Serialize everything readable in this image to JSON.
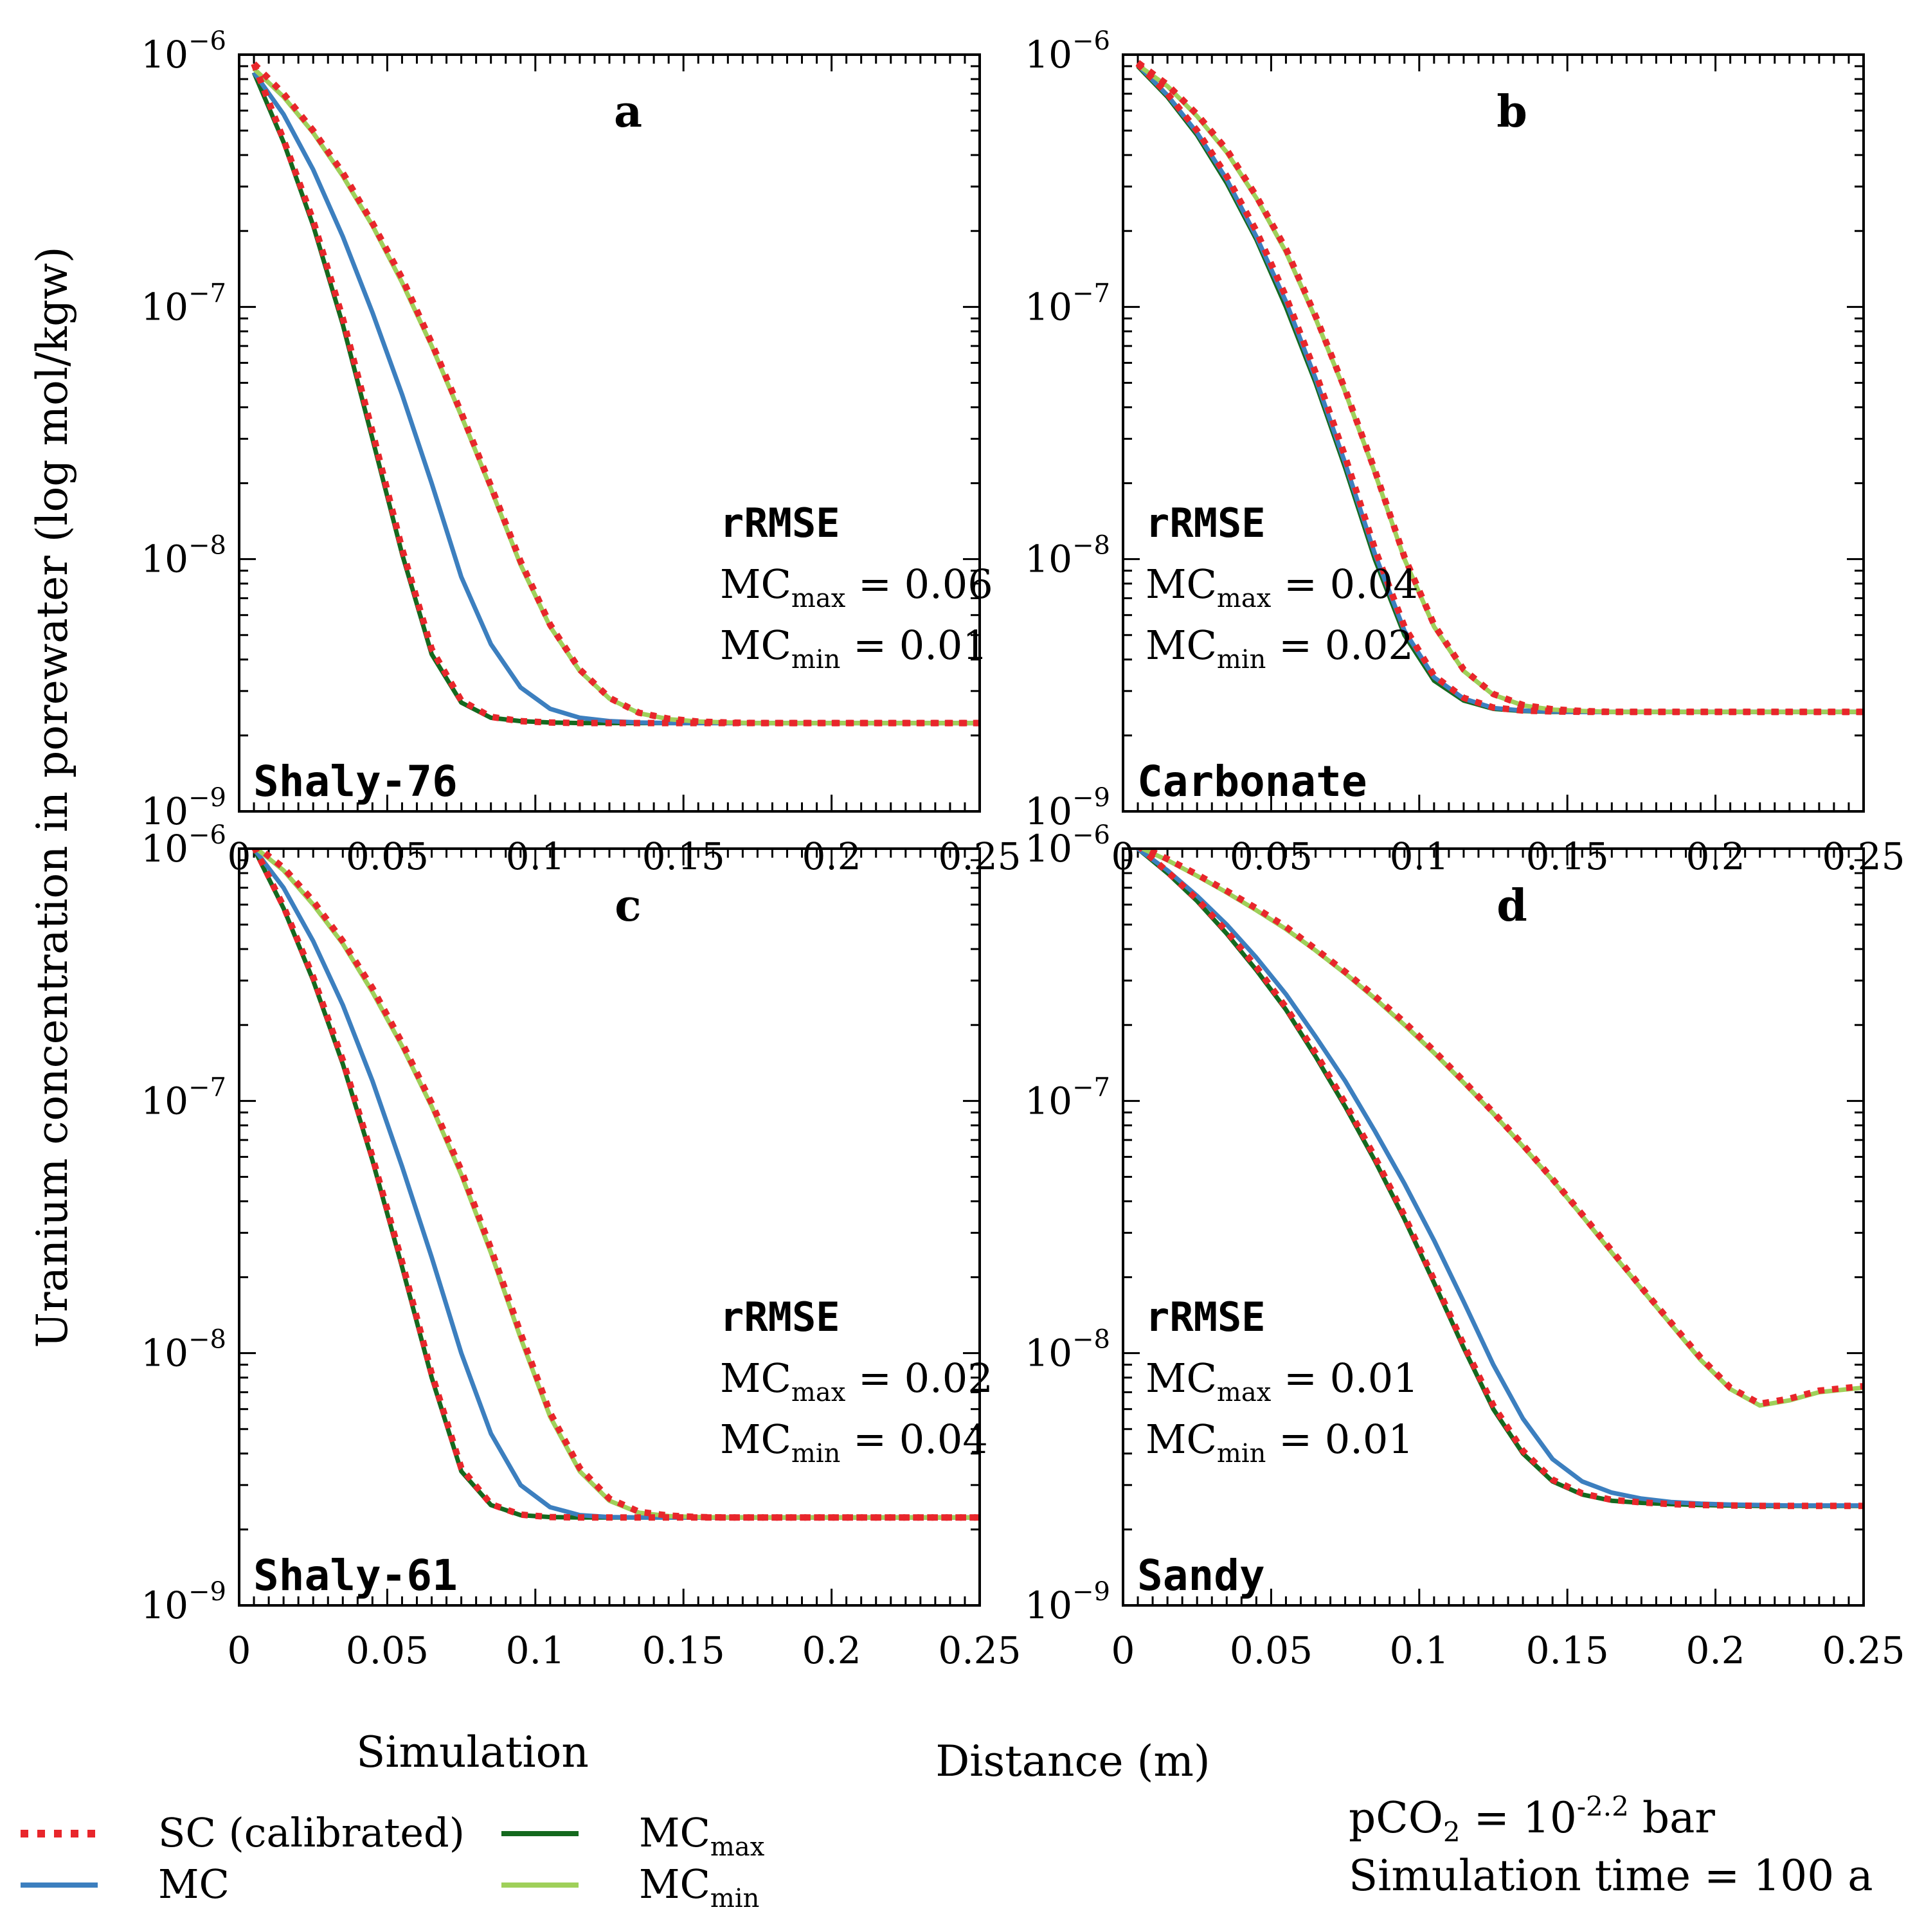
{
  "figure": {
    "y_axis_title": "Uranium concentration in porewater (log mol/kgw)",
    "x_axis_title": "Distance (m)",
    "simulation_label": "Simulation",
    "legend": [
      {
        "key": "SC",
        "label": "SC (calibrated)",
        "color": "#e8262b",
        "style": "dotted"
      },
      {
        "key": "MC",
        "label": "MC",
        "color": "#3c7fbf",
        "style": "solid"
      },
      {
        "key": "MCmax",
        "label": "MC",
        "sub": "max",
        "color": "#14691e",
        "style": "solid"
      },
      {
        "key": "MCmin",
        "label": "MC",
        "sub": "min",
        "color": "#9fd05a",
        "style": "solid"
      }
    ],
    "notes": {
      "pco2_prefix": "pCO",
      "pco2_sub": "2",
      "pco2_mid": " = 10",
      "pco2_exp": "-2.2",
      "pco2_unit": " bar",
      "time_text": "Simulation time = 100 a"
    }
  },
  "chart_data": [
    {
      "type": "line",
      "letter": "a",
      "name": "Shaly-76",
      "xlim": [
        0,
        0.25
      ],
      "ylim_log10": [
        -9,
        -6
      ],
      "xticks": [
        0,
        0.05,
        0.1,
        0.15,
        0.2,
        0.25
      ],
      "xtick_labels": [
        "0",
        "0.05",
        "0.1",
        "0.15",
        "0.2",
        "0.25"
      ],
      "ytick_exponents": [
        -9,
        -8,
        -7,
        -6
      ],
      "rrmse": {
        "title": "rRMSE",
        "mc_max": "MC",
        "mc_max_sub": "max",
        "mc_max_value": " = 0.06",
        "mc_min": "MC",
        "mc_min_sub": "min",
        "mc_min_value": " = 0.01"
      },
      "x": [
        0.005,
        0.015,
        0.025,
        0.035,
        0.045,
        0.055,
        0.065,
        0.075,
        0.085,
        0.095,
        0.105,
        0.115,
        0.125,
        0.135,
        0.145,
        0.155,
        0.165,
        0.175,
        0.185,
        0.195,
        0.205,
        0.215,
        0.225,
        0.235,
        0.245,
        0.25
      ],
      "series": [
        {
          "key": "MCmax",
          "values": [
            8.5e-07,
            4.5e-07,
            2.1e-07,
            8.5e-08,
            3e-08,
            1.05e-08,
            4.2e-09,
            2.7e-09,
            2.35e-09,
            2.28e-09,
            2.25e-09,
            2.24e-09,
            2.24e-09,
            2.24e-09,
            2.24e-09,
            2.24e-09,
            2.24e-09,
            2.24e-09,
            2.24e-09,
            2.24e-09,
            2.24e-09,
            2.24e-09,
            2.24e-09,
            2.24e-09,
            2.24e-09,
            2.24e-09
          ]
        },
        {
          "key": "MC",
          "values": [
            8.5e-07,
            5.8e-07,
            3.5e-07,
            1.9e-07,
            9.5e-08,
            4.5e-08,
            2e-08,
            8.5e-09,
            4.6e-09,
            3.1e-09,
            2.55e-09,
            2.35e-09,
            2.28e-09,
            2.25e-09,
            2.24e-09,
            2.24e-09,
            2.24e-09,
            2.24e-09,
            2.24e-09,
            2.24e-09,
            2.24e-09,
            2.24e-09,
            2.24e-09,
            2.24e-09,
            2.24e-09,
            2.24e-09
          ]
        },
        {
          "key": "MCmin",
          "values": [
            8.8e-07,
            6.8e-07,
            4.9e-07,
            3.3e-07,
            2.1e-07,
            1.25e-07,
            7e-08,
            3.7e-08,
            1.9e-08,
            9.5e-09,
            5.4e-09,
            3.6e-09,
            2.8e-09,
            2.45e-09,
            2.32e-09,
            2.27e-09,
            2.25e-09,
            2.24e-09,
            2.24e-09,
            2.24e-09,
            2.24e-09,
            2.24e-09,
            2.24e-09,
            2.24e-09,
            2.24e-09,
            2.24e-09
          ]
        },
        {
          "key": "SC",
          "values": [
            9.2e-07,
            4.6e-07,
            2.2e-07,
            9e-08,
            3.2e-08,
            1.1e-08,
            4.4e-09,
            2.75e-09,
            2.37e-09,
            2.28e-09,
            2.25e-09,
            2.24e-09,
            2.24e-09,
            2.24e-09,
            2.24e-09,
            2.24e-09,
            2.24e-09,
            2.24e-09,
            2.24e-09,
            2.24e-09,
            2.24e-09,
            2.24e-09,
            2.24e-09,
            2.24e-09,
            2.24e-09,
            2.24e-09
          ]
        },
        {
          "key": "SC",
          "values": [
            9.2e-07,
            7e-07,
            5e-07,
            3.4e-07,
            2.15e-07,
            1.3e-07,
            7.2e-08,
            3.8e-08,
            1.95e-08,
            9.8e-09,
            5.5e-09,
            3.65e-09,
            2.82e-09,
            2.46e-09,
            2.33e-09,
            2.27e-09,
            2.25e-09,
            2.24e-09,
            2.24e-09,
            2.24e-09,
            2.24e-09,
            2.24e-09,
            2.24e-09,
            2.24e-09,
            2.24e-09,
            2.24e-09
          ]
        }
      ]
    },
    {
      "type": "line",
      "letter": "b",
      "name": "Carbonate",
      "xlim": [
        0,
        0.25
      ],
      "ylim_log10": [
        -9,
        -6
      ],
      "xticks": [
        0,
        0.05,
        0.1,
        0.15,
        0.2,
        0.25
      ],
      "xtick_labels": [
        "0",
        "0.05",
        "0.1",
        "0.15",
        "0.2",
        "0.25"
      ],
      "ytick_exponents": [
        -9,
        -8,
        -7,
        -6
      ],
      "rrmse": {
        "title": "rRMSE",
        "mc_max": "MC",
        "mc_max_sub": "max",
        "mc_max_value": " = 0.04",
        "mc_min": "MC",
        "mc_min_sub": "min",
        "mc_min_value": " = 0.02"
      },
      "x": [
        0.005,
        0.015,
        0.025,
        0.035,
        0.045,
        0.055,
        0.065,
        0.075,
        0.085,
        0.095,
        0.105,
        0.115,
        0.125,
        0.135,
        0.145,
        0.155,
        0.165,
        0.175,
        0.185,
        0.195,
        0.205,
        0.215,
        0.225,
        0.235,
        0.245,
        0.25
      ],
      "series": [
        {
          "key": "MCmax",
          "values": [
            9e-07,
            6.8e-07,
            4.8e-07,
            3.1e-07,
            1.85e-07,
            1e-07,
            5e-08,
            2.3e-08,
            1e-08,
            5e-09,
            3.3e-09,
            2.75e-09,
            2.55e-09,
            2.5e-09,
            2.48e-09,
            2.48e-09,
            2.48e-09,
            2.48e-09,
            2.48e-09,
            2.48e-09,
            2.48e-09,
            2.48e-09,
            2.48e-09,
            2.48e-09,
            2.48e-09,
            2.48e-09
          ]
        },
        {
          "key": "MC",
          "values": [
            9.1e-07,
            6.9e-07,
            4.9e-07,
            3.2e-07,
            1.9e-07,
            1.05e-07,
            5.2e-08,
            2.4e-08,
            1.05e-08,
            5.2e-09,
            3.4e-09,
            2.8e-09,
            2.57e-09,
            2.51e-09,
            2.49e-09,
            2.48e-09,
            2.48e-09,
            2.48e-09,
            2.48e-09,
            2.48e-09,
            2.48e-09,
            2.48e-09,
            2.48e-09,
            2.48e-09,
            2.48e-09,
            2.48e-09
          ]
        },
        {
          "key": "MCmin",
          "values": [
            9.1e-07,
            7.5e-07,
            5.7e-07,
            4.1e-07,
            2.7e-07,
            1.65e-07,
            9e-08,
            4.6e-08,
            2.2e-08,
            1e-08,
            5.4e-09,
            3.6e-09,
            2.9e-09,
            2.63e-09,
            2.53e-09,
            2.5e-09,
            2.48e-09,
            2.48e-09,
            2.48e-09,
            2.48e-09,
            2.48e-09,
            2.48e-09,
            2.48e-09,
            2.48e-09,
            2.48e-09,
            2.48e-09
          ]
        },
        {
          "key": "SC",
          "values": [
            9.2e-07,
            7e-07,
            5e-07,
            3.3e-07,
            2e-07,
            1.1e-07,
            5.5e-08,
            2.55e-08,
            1.1e-08,
            5.4e-09,
            3.45e-09,
            2.82e-09,
            2.58e-09,
            2.51e-09,
            2.49e-09,
            2.48e-09,
            2.48e-09,
            2.48e-09,
            2.48e-09,
            2.48e-09,
            2.48e-09,
            2.48e-09,
            2.48e-09,
            2.48e-09,
            2.48e-09,
            2.48e-09
          ]
        },
        {
          "key": "SC",
          "values": [
            9.3e-07,
            7.6e-07,
            5.8e-07,
            4.2e-07,
            2.75e-07,
            1.7e-07,
            9.2e-08,
            4.7e-08,
            2.25e-08,
            1.02e-08,
            5.5e-09,
            3.65e-09,
            2.92e-09,
            2.64e-09,
            2.54e-09,
            2.5e-09,
            2.48e-09,
            2.48e-09,
            2.48e-09,
            2.48e-09,
            2.48e-09,
            2.48e-09,
            2.48e-09,
            2.48e-09,
            2.48e-09,
            2.48e-09
          ]
        }
      ]
    },
    {
      "type": "line",
      "letter": "c",
      "name": "Shaly-61",
      "xlim": [
        0,
        0.25
      ],
      "ylim_log10": [
        -9,
        -6
      ],
      "xticks": [
        0,
        0.05,
        0.1,
        0.15,
        0.2,
        0.25
      ],
      "xtick_labels": [
        "0",
        "0.05",
        "0.1",
        "0.15",
        "0.2",
        "0.25"
      ],
      "ytick_exponents": [
        -9,
        -8,
        -7,
        -6
      ],
      "rrmse": {
        "title": "rRMSE",
        "mc_max": "MC",
        "mc_max_sub": "max",
        "mc_max_value": " = 0.02",
        "mc_min": "MC",
        "mc_min_sub": "min",
        "mc_min_value": " = 0.04"
      },
      "x": [
        0.005,
        0.015,
        0.025,
        0.035,
        0.045,
        0.055,
        0.065,
        0.075,
        0.085,
        0.095,
        0.105,
        0.115,
        0.125,
        0.135,
        0.145,
        0.155,
        0.165,
        0.175,
        0.185,
        0.195,
        0.205,
        0.215,
        0.225,
        0.235,
        0.245,
        0.25
      ],
      "series": [
        {
          "key": "MCmax",
          "values": [
            1e-06,
            5.8e-07,
            3e-07,
            1.4e-07,
            5.8e-08,
            2.2e-08,
            8e-09,
            3.4e-09,
            2.5e-09,
            2.28e-09,
            2.24e-09,
            2.23e-09,
            2.23e-09,
            2.23e-09,
            2.23e-09,
            2.23e-09,
            2.23e-09,
            2.23e-09,
            2.23e-09,
            2.23e-09,
            2.23e-09,
            2.23e-09,
            2.23e-09,
            2.23e-09,
            2.23e-09,
            2.23e-09
          ]
        },
        {
          "key": "MC",
          "values": [
            1e-06,
            7e-07,
            4.3e-07,
            2.4e-07,
            1.2e-07,
            5.5e-08,
            2.4e-08,
            1e-08,
            4.8e-09,
            3e-09,
            2.45e-09,
            2.28e-09,
            2.24e-09,
            2.23e-09,
            2.23e-09,
            2.23e-09,
            2.23e-09,
            2.23e-09,
            2.23e-09,
            2.23e-09,
            2.23e-09,
            2.23e-09,
            2.23e-09,
            2.23e-09,
            2.23e-09,
            2.23e-09
          ]
        },
        {
          "key": "MCmin",
          "values": [
            1.02e-06,
            8.2e-07,
            6e-07,
            4.2e-07,
            2.7e-07,
            1.65e-07,
            9.5e-08,
            5.1e-08,
            2.5e-08,
            1.15e-08,
            5.6e-09,
            3.4e-09,
            2.6e-09,
            2.33e-09,
            2.26e-09,
            2.24e-09,
            2.23e-09,
            2.23e-09,
            2.23e-09,
            2.23e-09,
            2.23e-09,
            2.23e-09,
            2.23e-09,
            2.23e-09,
            2.23e-09,
            2.23e-09
          ]
        },
        {
          "key": "SC",
          "values": [
            1.02e-06,
            5.9e-07,
            3.1e-07,
            1.45e-07,
            6e-08,
            2.3e-08,
            8.3e-09,
            3.5e-09,
            2.52e-09,
            2.29e-09,
            2.24e-09,
            2.23e-09,
            2.23e-09,
            2.23e-09,
            2.23e-09,
            2.23e-09,
            2.23e-09,
            2.23e-09,
            2.23e-09,
            2.23e-09,
            2.23e-09,
            2.23e-09,
            2.23e-09,
            2.23e-09,
            2.23e-09,
            2.23e-09
          ]
        },
        {
          "key": "SC",
          "values": [
            1.04e-06,
            8.4e-07,
            6.2e-07,
            4.3e-07,
            2.8e-07,
            1.7e-07,
            9.8e-08,
            5.3e-08,
            2.6e-08,
            1.2e-08,
            5.8e-09,
            3.5e-09,
            2.65e-09,
            2.35e-09,
            2.27e-09,
            2.24e-09,
            2.23e-09,
            2.23e-09,
            2.23e-09,
            2.23e-09,
            2.23e-09,
            2.23e-09,
            2.23e-09,
            2.23e-09,
            2.23e-09,
            2.23e-09
          ]
        }
      ]
    },
    {
      "type": "line",
      "letter": "d",
      "name": "Sandy",
      "xlim": [
        0,
        0.25
      ],
      "ylim_log10": [
        -9,
        -6
      ],
      "xticks": [
        0,
        0.05,
        0.1,
        0.15,
        0.2,
        0.25
      ],
      "xtick_labels": [
        "0",
        "0.05",
        "0.1",
        "0.15",
        "0.2",
        "0.25"
      ],
      "ytick_exponents": [
        -9,
        -8,
        -7,
        -6
      ],
      "rrmse": {
        "title": "rRMSE",
        "mc_max": "MC",
        "mc_max_sub": "max",
        "mc_max_value": " = 0.01",
        "mc_min": "MC",
        "mc_min_sub": "min",
        "mc_min_value": " = 0.01"
      },
      "x": [
        0.005,
        0.015,
        0.025,
        0.035,
        0.045,
        0.055,
        0.065,
        0.075,
        0.085,
        0.095,
        0.105,
        0.115,
        0.125,
        0.135,
        0.145,
        0.155,
        0.165,
        0.175,
        0.185,
        0.195,
        0.205,
        0.215,
        0.225,
        0.235,
        0.245,
        0.25
      ],
      "series": [
        {
          "key": "MCmax",
          "values": [
            1e-06,
            8e-07,
            6.2e-07,
            4.6e-07,
            3.3e-07,
            2.3e-07,
            1.5e-07,
            9.5e-08,
            5.8e-08,
            3.4e-08,
            1.9e-08,
            1.05e-08,
            6e-09,
            4e-09,
            3.1e-09,
            2.75e-09,
            2.6e-09,
            2.55e-09,
            2.52e-09,
            2.5e-09,
            2.49e-09,
            2.48e-09,
            2.48e-09,
            2.48e-09,
            2.48e-09,
            2.48e-09
          ]
        },
        {
          "key": "MC",
          "values": [
            1e-06,
            8.2e-07,
            6.5e-07,
            5e-07,
            3.7e-07,
            2.65e-07,
            1.8e-07,
            1.2e-07,
            7.6e-08,
            4.7e-08,
            2.8e-08,
            1.6e-08,
            9e-09,
            5.5e-09,
            3.8e-09,
            3.1e-09,
            2.8e-09,
            2.65e-09,
            2.57e-09,
            2.53e-09,
            2.51e-09,
            2.5e-09,
            2.49e-09,
            2.49e-09,
            2.49e-09,
            2.49e-09
          ]
        },
        {
          "key": "MCmin",
          "values": [
            1.02e-06,
            9e-07,
            7.8e-07,
            6.7e-07,
            5.7e-07,
            4.8e-07,
            3.95e-07,
            3.2e-07,
            2.55e-07,
            2e-07,
            1.55e-07,
            1.18e-07,
            8.9e-08,
            6.6e-08,
            4.85e-08,
            3.5e-08,
            2.5e-08,
            1.8e-08,
            1.3e-08,
            9.4e-09,
            7.2e-09,
            6.2e-09,
            6.5e-09,
            7e-09,
            7.2e-09,
            7.3e-09
          ]
        },
        {
          "key": "SC",
          "values": [
            1.03e-06,
            8.1e-07,
            6.3e-07,
            4.7e-07,
            3.4e-07,
            2.35e-07,
            1.55e-07,
            9.8e-08,
            6e-08,
            3.5e-08,
            1.95e-08,
            1.08e-08,
            6.2e-09,
            4.1e-09,
            3.15e-09,
            2.78e-09,
            2.62e-09,
            2.56e-09,
            2.52e-09,
            2.5e-09,
            2.49e-09,
            2.48e-09,
            2.48e-09,
            2.48e-09,
            2.48e-09,
            2.48e-09
          ]
        },
        {
          "key": "SC",
          "values": [
            1.04e-06,
            9.1e-07,
            7.9e-07,
            6.8e-07,
            5.8e-07,
            4.9e-07,
            4e-07,
            3.25e-07,
            2.6e-07,
            2.05e-07,
            1.58e-07,
            1.2e-07,
            9e-08,
            6.7e-08,
            4.9e-08,
            3.55e-08,
            2.55e-08,
            1.82e-08,
            1.32e-08,
            9.6e-09,
            7.3e-09,
            6.3e-09,
            6.6e-09,
            7.1e-09,
            7.3e-09,
            7.4e-09
          ]
        }
      ]
    }
  ]
}
